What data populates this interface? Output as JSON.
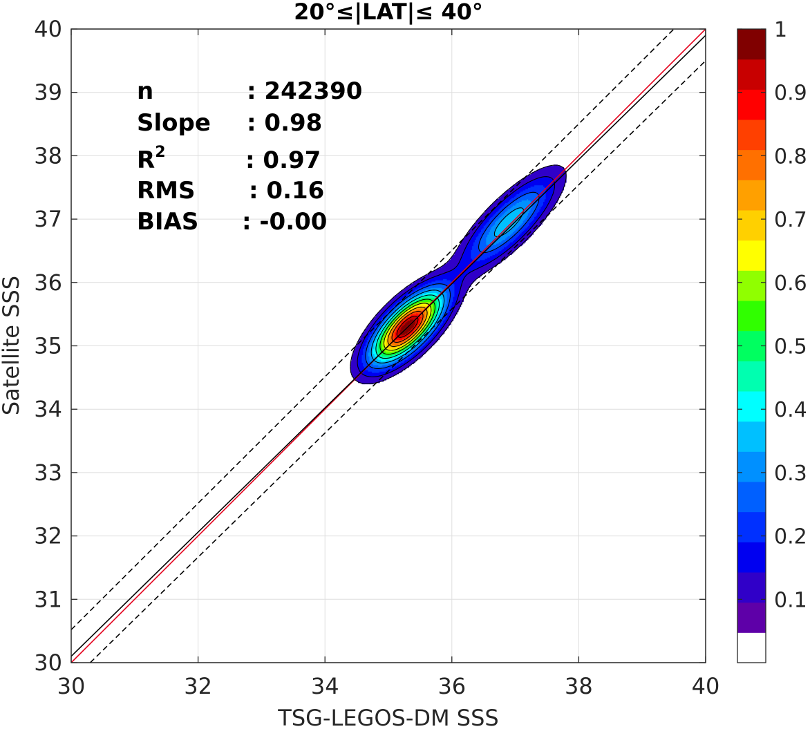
{
  "chart_data": {
    "type": "heatmap",
    "subtype": "normalized density contour with regression lines",
    "title": "20°≤|LAT|≤ 40°",
    "xlabel": "TSG-LEGOS-DM SSS",
    "ylabel": "Satellite SSS",
    "xlim": [
      30,
      40
    ],
    "ylim": [
      30,
      40
    ],
    "xticks": [
      "30",
      "32",
      "34",
      "36",
      "38",
      "40"
    ],
    "yticks": [
      "30",
      "31",
      "32",
      "33",
      "34",
      "35",
      "36",
      "37",
      "38",
      "39",
      "40"
    ],
    "grid": true,
    "stats": [
      {
        "key": "n",
        "value": ": 242390"
      },
      {
        "key": "Slope",
        "value": ": 0.98"
      },
      {
        "key": "R",
        "sup": "2",
        "value": ": 0.97"
      },
      {
        "key": "RMS",
        "value": ": 0.16"
      },
      {
        "key": "BIAS",
        "value": ": -0.00"
      }
    ],
    "lines": [
      {
        "name": "identity",
        "color": "#e3001b",
        "dash": false,
        "x": [
          30,
          40
        ],
        "y": [
          30,
          40
        ]
      },
      {
        "name": "regression",
        "color": "#000000",
        "dash": false,
        "x": [
          30,
          40
        ],
        "y": [
          30.1,
          39.9
        ]
      },
      {
        "name": "upper-bound",
        "color": "#000000",
        "dash": true,
        "x": [
          30,
          39.5
        ],
        "y": [
          30.52,
          40
        ]
      },
      {
        "name": "lower-bound",
        "color": "#000000",
        "dash": true,
        "x": [
          30.3,
          40
        ],
        "y": [
          30,
          39.5
        ]
      }
    ],
    "density_peaks": [
      {
        "x": 35.3,
        "y": 35.3,
        "amplitude": 1.0,
        "sigma_along": 0.48,
        "sigma_across": 0.2
      },
      {
        "x": 36.9,
        "y": 36.95,
        "amplitude": 0.34,
        "sigma_along": 0.62,
        "sigma_across": 0.2
      }
    ],
    "contour_levels": [
      0.05,
      0.1,
      0.2,
      0.3,
      0.4,
      0.5,
      0.6,
      0.7,
      0.8,
      0.9
    ],
    "colorbar": {
      "range": [
        0,
        1
      ],
      "tick_labels": [
        "1",
        "0.9",
        "0.8",
        "0.7",
        "0.6",
        "0.5",
        "0.4",
        "0.3",
        "0.2",
        "0.1"
      ],
      "colors": [
        "#ffffff",
        "#5e00a8",
        "#3000c8",
        "#0000f0",
        "#0030ff",
        "#0060ff",
        "#0090ff",
        "#00c0ff",
        "#00ffff",
        "#00ffb0",
        "#00ff60",
        "#30ff00",
        "#90ff00",
        "#ffff00",
        "#ffd000",
        "#ffa000",
        "#ff7000",
        "#ff4000",
        "#ff0000",
        "#c80000",
        "#800000"
      ]
    }
  }
}
